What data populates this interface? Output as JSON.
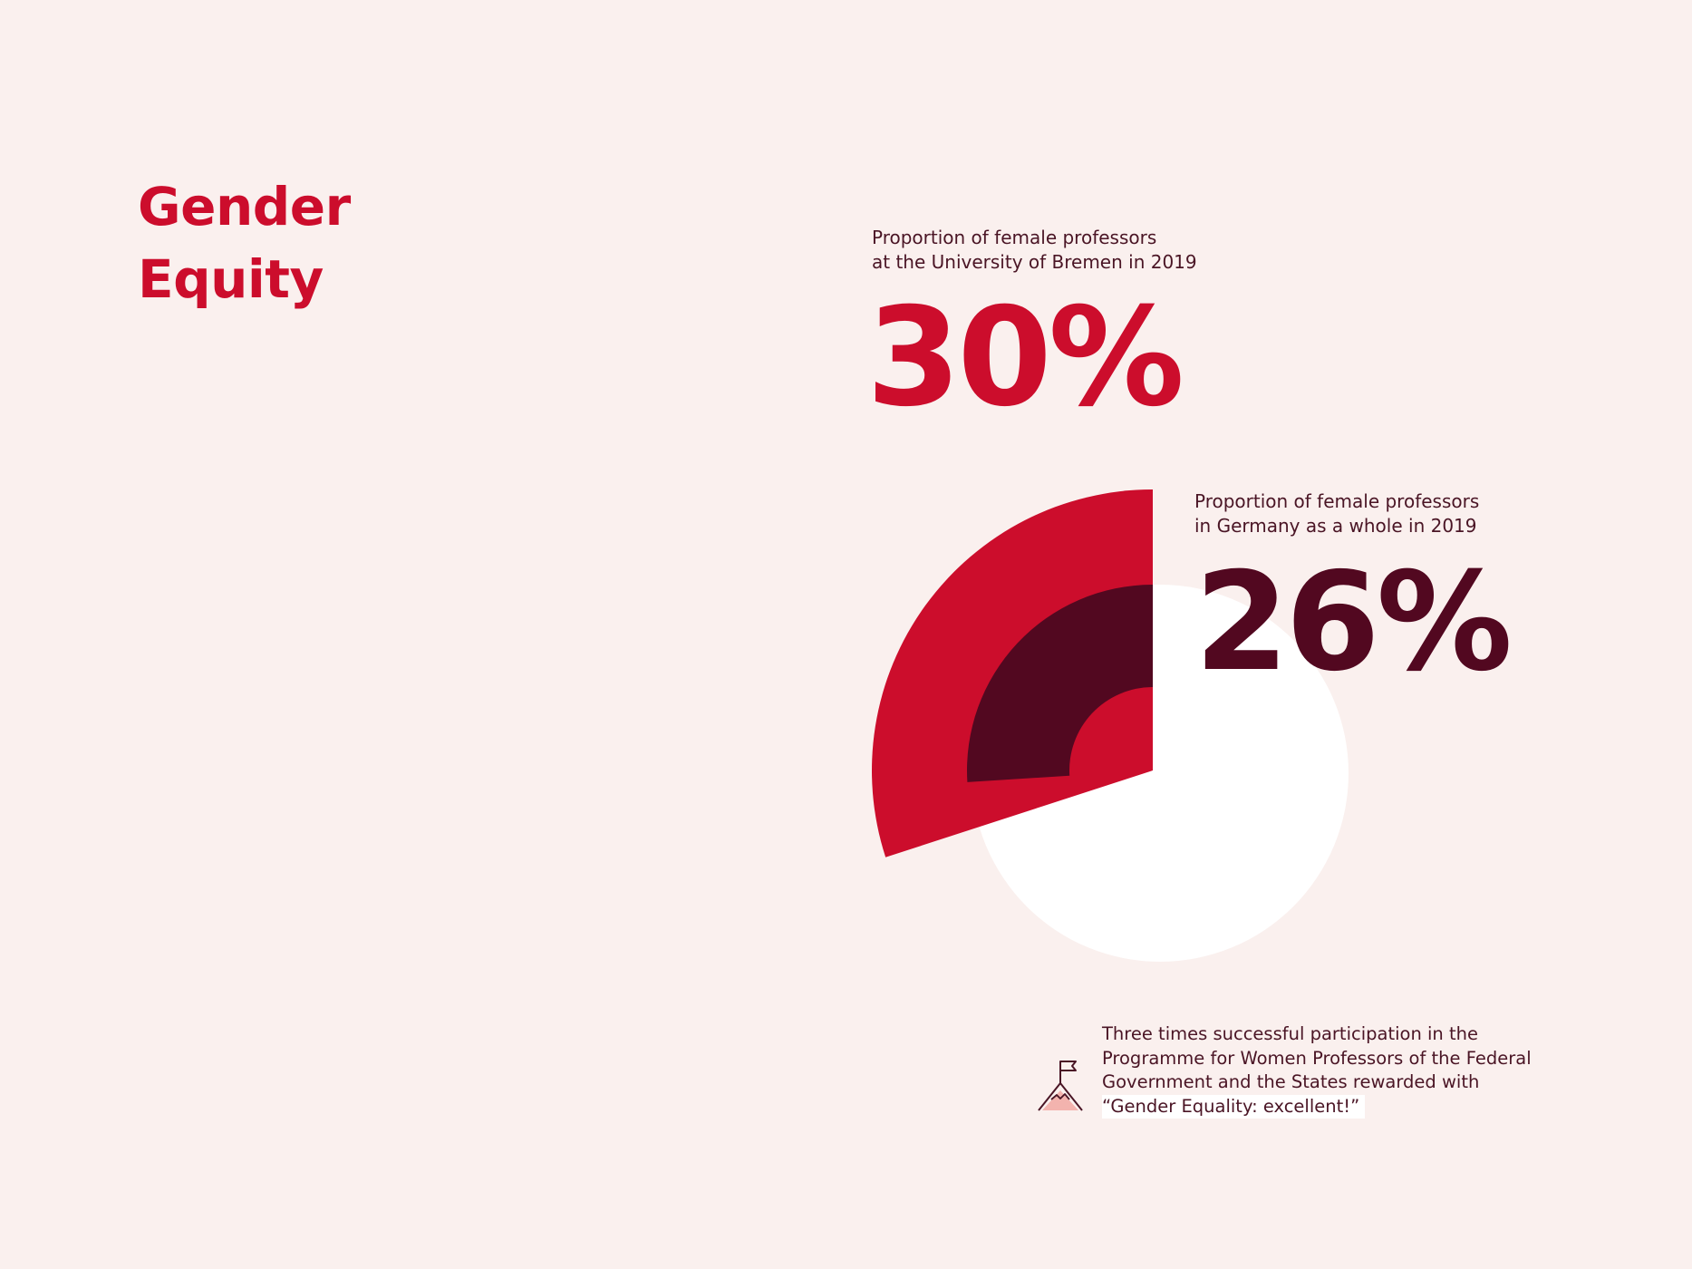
{
  "title": {
    "line1": "Gender",
    "line2": "Equity"
  },
  "stats": {
    "bremen": {
      "caption_line1": "Proportion of female professors",
      "caption_line2": "at the University of Bremen in 2019",
      "value_label": "30%"
    },
    "germany": {
      "caption_line1": "Proportion of female professors",
      "caption_line2": "in Germany as a whole in 2019",
      "value_label": "26%"
    }
  },
  "note": {
    "icon": "mountain-flag-icon",
    "line1": "Three times successful participation in the",
    "line2": "Programme for Women Professors of the Federal",
    "line3": "Government and the States rewarded with",
    "line4": "“Gender Equality: excellent!”"
  },
  "colors": {
    "background": "#faf0ee",
    "accent_red": "#cc0d2c",
    "dark_maroon": "#520820",
    "text": "#4a1525",
    "white": "#ffffff",
    "icon_fill": "#f3b3ae"
  },
  "chart_data": {
    "type": "pie",
    "series": [
      {
        "values": [
          30
        ],
        "color": "#cc0d2c"
      },
      {
        "values": [
          26
        ],
        "color": "#520820"
      }
    ],
    "unit": "%",
    "total": 100
  }
}
